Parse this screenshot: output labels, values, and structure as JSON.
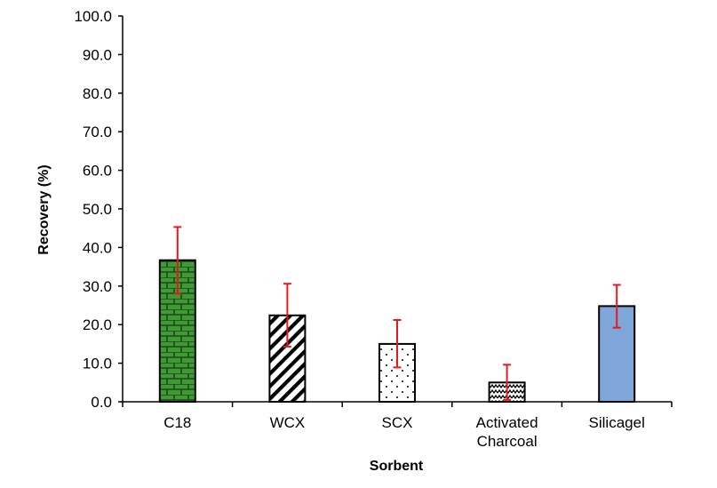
{
  "chart_data": {
    "type": "bar",
    "title": "",
    "xlabel": "Sorbent",
    "ylabel": "Recovery (%)",
    "ylim": [
      0,
      100
    ],
    "ytick_step": 10,
    "ytick_labels": [
      "0.0",
      "10.0",
      "20.0",
      "30.0",
      "40.0",
      "50.0",
      "60.0",
      "70.0",
      "80.0",
      "90.0",
      "100.0"
    ],
    "grid": false,
    "categories": [
      [
        "C18"
      ],
      [
        "WCX"
      ],
      [
        "SCX"
      ],
      [
        "Activated",
        "Charcoal"
      ],
      [
        "Silicagel"
      ]
    ],
    "values": [
      36.7,
      22.4,
      15.0,
      5.0,
      24.8
    ],
    "error_bars": [
      [
        28.0,
        45.3
      ],
      [
        14.3,
        30.6
      ],
      [
        8.9,
        21.2
      ],
      [
        0.5,
        9.6
      ],
      [
        19.2,
        30.3
      ]
    ],
    "bar_fills": [
      "brick-green",
      "diagonal-stripe",
      "dots",
      "zigzag",
      "solid-blue"
    ],
    "colors": {
      "brick_green": "#3f9a35",
      "brick_mortar": "#1b4a16",
      "solid_blue": "#7ea6da",
      "error_bar": "#e8191c",
      "bar_outline": "#000000",
      "axis": "#000000"
    }
  }
}
